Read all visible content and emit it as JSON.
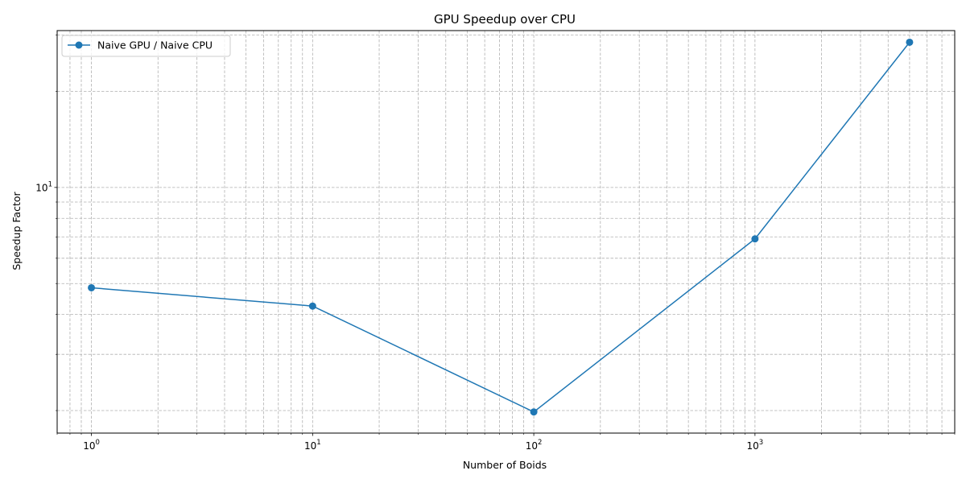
{
  "chart_data": {
    "type": "line",
    "title": "GPU Speedup over CPU",
    "xlabel": "Number of Boids",
    "ylabel": "Speedup Factor",
    "xscale": "log",
    "yscale": "log",
    "xlim": [
      0.7,
      8000
    ],
    "ylim": [
      1.7,
      31
    ],
    "grid": true,
    "legend_position": "top-left",
    "x_ticks": [
      {
        "value": 1,
        "base": "10",
        "exp": "0"
      },
      {
        "value": 10,
        "base": "10",
        "exp": "1"
      },
      {
        "value": 100,
        "base": "10",
        "exp": "2"
      },
      {
        "value": 1000,
        "base": "10",
        "exp": "3"
      }
    ],
    "y_ticks": [
      {
        "value": 10,
        "base": "10",
        "exp": "1"
      }
    ],
    "series": [
      {
        "name": "Naive GPU / Naive CPU",
        "color": "#1f77b4",
        "x": [
          1,
          10,
          100,
          1000,
          5000
        ],
        "y": [
          4.85,
          4.25,
          1.98,
          6.9,
          28.5
        ]
      }
    ]
  }
}
